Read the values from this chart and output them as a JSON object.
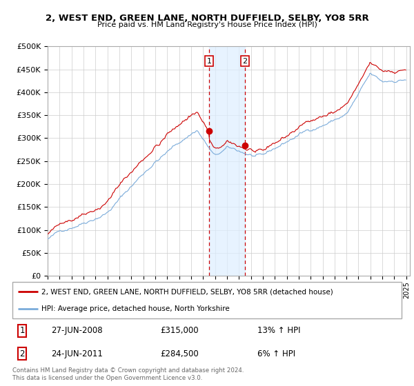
{
  "title": "2, WEST END, GREEN LANE, NORTH DUFFIELD, SELBY, YO8 5RR",
  "subtitle": "Price paid vs. HM Land Registry's House Price Index (HPI)",
  "legend_property": "2, WEST END, GREEN LANE, NORTH DUFFIELD, SELBY, YO8 5RR (detached house)",
  "legend_hpi": "HPI: Average price, detached house, North Yorkshire",
  "footer": "Contains HM Land Registry data © Crown copyright and database right 2024.\nThis data is licensed under the Open Government Licence v3.0.",
  "transaction1_date": "27-JUN-2008",
  "transaction1_price": "£315,000",
  "transaction1_hpi": "13% ↑ HPI",
  "transaction2_date": "24-JUN-2011",
  "transaction2_price": "£284,500",
  "transaction2_hpi": "6% ↑ HPI",
  "sale1_year": 2008.5,
  "sale1_price": 315000,
  "sale2_year": 2011.5,
  "sale2_price": 284500,
  "ylim": [
    0,
    500000
  ],
  "yticks": [
    0,
    50000,
    100000,
    150000,
    200000,
    250000,
    300000,
    350000,
    400000,
    450000,
    500000
  ],
  "property_color": "#cc0000",
  "hpi_color": "#7aabda",
  "vline_color": "#cc0000",
  "shade_color": "#ddeeff",
  "background_color": "#ffffff",
  "grid_color": "#cccccc"
}
